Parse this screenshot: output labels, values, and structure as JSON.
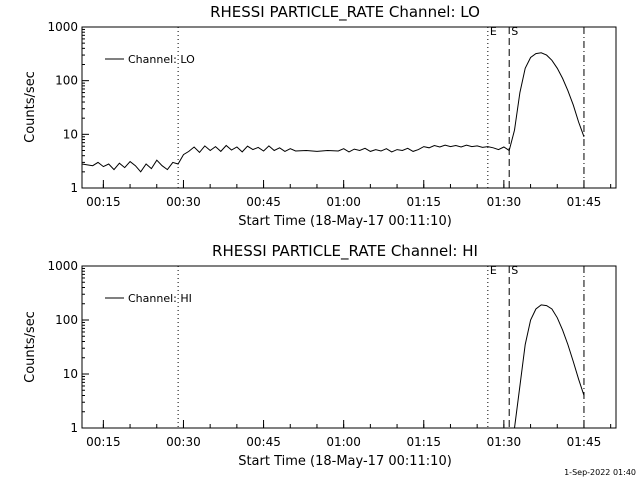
{
  "footer": {
    "timestamp": "1-Sep-2022 01:40"
  },
  "chart_data": [
    {
      "type": "line",
      "title": "RHESSI PARTICLE_RATE Channel: LO",
      "xlabel": "Start Time (18-May-17 00:11:10)",
      "ylabel": "Counts/sec",
      "yscale": "log",
      "ylim": [
        1,
        1000
      ],
      "xlim": [
        "00:11",
        "01:51"
      ],
      "x_ticks": [
        "00:15",
        "00:30",
        "00:45",
        "01:00",
        "01:15",
        "01:30",
        "01:45"
      ],
      "y_ticks": [
        "1",
        "10",
        "100",
        "1000"
      ],
      "legend": {
        "position": "top-left",
        "entries": [
          "Channel: LO"
        ]
      },
      "vertical_markers": [
        {
          "time": "00:29",
          "style": "dotted",
          "label": ""
        },
        {
          "time": "01:27",
          "style": "dotted",
          "label": "E"
        },
        {
          "time": "01:31",
          "style": "dashed",
          "label": "S"
        },
        {
          "time": "01:45",
          "style": "dash-dot",
          "label": ""
        }
      ],
      "series": [
        {
          "name": "Channel: LO",
          "points": [
            [
              "00:11",
              2.8
            ],
            [
              "00:13",
              2.6
            ],
            [
              "00:14",
              3.0
            ],
            [
              "00:15",
              2.5
            ],
            [
              "00:16",
              2.8
            ],
            [
              "00:17",
              2.2
            ],
            [
              "00:18",
              2.9
            ],
            [
              "00:19",
              2.4
            ],
            [
              "00:20",
              3.1
            ],
            [
              "00:21",
              2.6
            ],
            [
              "00:22",
              2.0
            ],
            [
              "00:23",
              2.8
            ],
            [
              "00:24",
              2.3
            ],
            [
              "00:25",
              3.3
            ],
            [
              "00:26",
              2.6
            ],
            [
              "00:27",
              2.2
            ],
            [
              "00:28",
              3.0
            ],
            [
              "00:29",
              2.8
            ],
            [
              "00:30",
              4.2
            ],
            [
              "00:31",
              4.8
            ],
            [
              "00:32",
              5.8
            ],
            [
              "00:33",
              4.6
            ],
            [
              "00:34",
              6.1
            ],
            [
              "00:35",
              5.0
            ],
            [
              "00:36",
              5.9
            ],
            [
              "00:37",
              4.8
            ],
            [
              "00:38",
              6.2
            ],
            [
              "00:39",
              5.1
            ],
            [
              "00:40",
              5.8
            ],
            [
              "00:41",
              4.7
            ],
            [
              "00:42",
              6.0
            ],
            [
              "00:43",
              5.2
            ],
            [
              "00:44",
              5.7
            ],
            [
              "00:45",
              4.9
            ],
            [
              "00:46",
              6.1
            ],
            [
              "00:47",
              5.0
            ],
            [
              "00:48",
              5.6
            ],
            [
              "00:49",
              4.8
            ],
            [
              "00:50",
              5.4
            ],
            [
              "00:51",
              4.9
            ],
            [
              "00:53",
              5.0
            ],
            [
              "00:55",
              4.8
            ],
            [
              "00:57",
              5.0
            ],
            [
              "00:59",
              4.9
            ],
            [
              "01:00",
              5.4
            ],
            [
              "01:01",
              4.7
            ],
            [
              "01:02",
              5.3
            ],
            [
              "01:03",
              5.0
            ],
            [
              "01:04",
              5.5
            ],
            [
              "01:05",
              4.8
            ],
            [
              "01:06",
              5.2
            ],
            [
              "01:07",
              4.9
            ],
            [
              "01:08",
              5.4
            ],
            [
              "01:09",
              4.7
            ],
            [
              "01:10",
              5.2
            ],
            [
              "01:11",
              5.0
            ],
            [
              "01:12",
              5.5
            ],
            [
              "01:13",
              4.8
            ],
            [
              "01:14",
              5.2
            ],
            [
              "01:15",
              5.9
            ],
            [
              "01:16",
              5.6
            ],
            [
              "01:17",
              6.2
            ],
            [
              "01:18",
              5.8
            ],
            [
              "01:19",
              6.3
            ],
            [
              "01:20",
              5.9
            ],
            [
              "01:21",
              6.2
            ],
            [
              "01:22",
              5.8
            ],
            [
              "01:23",
              6.3
            ],
            [
              "01:24",
              5.9
            ],
            [
              "01:25",
              6.1
            ],
            [
              "01:26",
              5.7
            ],
            [
              "01:27",
              5.9
            ],
            [
              "01:28",
              5.6
            ],
            [
              "01:29",
              5.2
            ],
            [
              "01:30",
              5.8
            ],
            [
              "01:31",
              5.0
            ],
            [
              "01:32",
              12
            ],
            [
              "01:33",
              60
            ],
            [
              "01:34",
              170
            ],
            [
              "01:35",
              270
            ],
            [
              "01:36",
              320
            ],
            [
              "01:37",
              330
            ],
            [
              "01:38",
              300
            ],
            [
              "01:39",
              240
            ],
            [
              "01:40",
              170
            ],
            [
              "01:41",
              110
            ],
            [
              "01:42",
              65
            ],
            [
              "01:43",
              35
            ],
            [
              "01:44",
              17
            ],
            [
              "01:45",
              9
            ]
          ]
        }
      ]
    },
    {
      "type": "line",
      "title": "RHESSI PARTICLE_RATE Channel: HI",
      "xlabel": "Start Time (18-May-17 00:11:10)",
      "ylabel": "Counts/sec",
      "yscale": "log",
      "ylim": [
        1,
        1000
      ],
      "xlim": [
        "00:11",
        "01:51"
      ],
      "x_ticks": [
        "00:15",
        "00:30",
        "00:45",
        "01:00",
        "01:15",
        "01:30",
        "01:45"
      ],
      "y_ticks": [
        "1",
        "10",
        "100",
        "1000"
      ],
      "legend": {
        "position": "top-left",
        "entries": [
          "Channel: HI"
        ]
      },
      "vertical_markers": [
        {
          "time": "00:29",
          "style": "dotted",
          "label": ""
        },
        {
          "time": "01:27",
          "style": "dotted",
          "label": "E"
        },
        {
          "time": "01:31",
          "style": "dashed",
          "label": "S"
        },
        {
          "time": "01:45",
          "style": "dash-dot",
          "label": ""
        }
      ],
      "series": [
        {
          "name": "Channel: HI",
          "points": [
            [
              "01:32",
              1.0
            ],
            [
              "01:33",
              6
            ],
            [
              "01:34",
              35
            ],
            [
              "01:35",
              100
            ],
            [
              "01:36",
              160
            ],
            [
              "01:37",
              190
            ],
            [
              "01:38",
              185
            ],
            [
              "01:39",
              160
            ],
            [
              "01:40",
              110
            ],
            [
              "01:41",
              65
            ],
            [
              "01:42",
              35
            ],
            [
              "01:43",
              17
            ],
            [
              "01:44",
              8
            ],
            [
              "01:45",
              4
            ]
          ]
        }
      ]
    }
  ]
}
